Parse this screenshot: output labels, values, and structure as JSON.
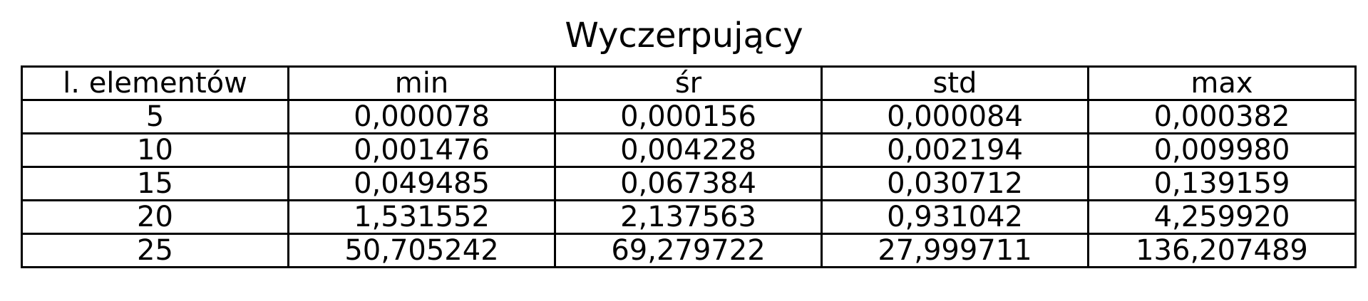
{
  "chart_data": {
    "type": "table",
    "title": "Wyczerpujący",
    "columns": [
      "l. elementów",
      "min",
      "śr",
      "std",
      "max"
    ],
    "rows": [
      [
        "5",
        "0,000078",
        "0,000156",
        "0,000084",
        "0,000382"
      ],
      [
        "10",
        "0,001476",
        "0,004228",
        "0,002194",
        "0,009980"
      ],
      [
        "15",
        "0,049485",
        "0,067384",
        "0,030712",
        "0,139159"
      ],
      [
        "20",
        "1,531552",
        "2,137563",
        "0,931042",
        "4,259920"
      ],
      [
        "25",
        "50,705242",
        "69,279722",
        "27,999711",
        "136,207489"
      ]
    ]
  }
}
